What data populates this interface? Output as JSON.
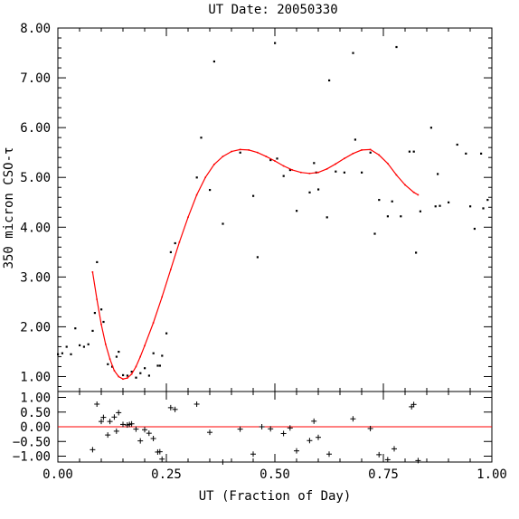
{
  "chart_data": [
    {
      "type": "scatter",
      "title": "UT Date: 20050330",
      "xlabel": "",
      "ylabel": "350 micron CSO-τ",
      "xlim": [
        0.0,
        1.0
      ],
      "ylim": [
        0.7,
        8.0
      ],
      "yticks": [
        1.0,
        2.0,
        3.0,
        4.0,
        5.0,
        6.0,
        7.0,
        8.0
      ],
      "ytick_labels": [
        "1.00",
        "2.00",
        "3.00",
        "4.00",
        "5.00",
        "6.00",
        "7.00",
        "8.00"
      ],
      "grid": false,
      "colors": {
        "points": "#000000",
        "fit": "#ff0000"
      },
      "series": [
        {
          "kind": "points",
          "x": [
            0.0,
            0.01,
            0.02,
            0.03,
            0.04,
            0.05,
            0.06,
            0.07,
            0.08,
            0.085,
            0.09,
            0.1,
            0.105,
            0.115,
            0.125,
            0.135,
            0.14,
            0.15,
            0.16,
            0.17,
            0.18,
            0.19,
            0.2,
            0.21,
            0.22,
            0.23,
            0.235,
            0.24,
            0.25,
            0.26,
            0.27,
            0.32,
            0.33,
            0.35,
            0.36,
            0.38,
            0.42,
            0.45,
            0.46,
            0.49,
            0.5,
            0.505,
            0.52,
            0.535,
            0.55,
            0.58,
            0.59,
            0.595,
            0.6,
            0.62,
            0.625,
            0.64,
            0.66,
            0.68,
            0.685,
            0.7,
            0.72,
            0.73,
            0.74,
            0.76,
            0.77,
            0.78,
            0.79,
            0.81,
            0.82,
            0.825,
            0.835,
            0.86,
            0.87,
            0.875,
            0.88,
            0.9,
            0.92,
            0.94,
            0.95,
            0.96,
            0.975,
            0.98,
            0.99
          ],
          "y": [
            1.45,
            1.47,
            1.6,
            1.45,
            1.97,
            1.63,
            1.6,
            1.65,
            1.92,
            2.28,
            3.3,
            2.35,
            2.1,
            1.25,
            1.2,
            1.4,
            1.5,
            1.03,
            1.02,
            1.1,
            0.98,
            1.07,
            1.17,
            1.02,
            1.47,
            1.22,
            1.22,
            1.42,
            1.87,
            3.5,
            3.68,
            5.0,
            5.8,
            4.75,
            7.33,
            4.07,
            5.5,
            4.63,
            3.4,
            5.35,
            7.7,
            5.38,
            5.03,
            5.15,
            4.33,
            4.7,
            5.29,
            5.1,
            4.76,
            4.2,
            6.95,
            5.12,
            5.1,
            7.5,
            5.76,
            5.1,
            5.5,
            3.87,
            4.55,
            4.22,
            4.52,
            7.62,
            4.22,
            5.52,
            5.52,
            3.49,
            4.32,
            6.0,
            4.42,
            5.07,
            4.43,
            4.5,
            5.66,
            5.48,
            4.42,
            3.97,
            5.48,
            4.38,
            4.55
          ]
        },
        {
          "kind": "fit",
          "x": [
            0.08,
            0.09,
            0.1,
            0.11,
            0.12,
            0.13,
            0.14,
            0.15,
            0.16,
            0.17,
            0.18,
            0.19,
            0.2,
            0.22,
            0.24,
            0.26,
            0.28,
            0.3,
            0.32,
            0.34,
            0.36,
            0.38,
            0.4,
            0.42,
            0.44,
            0.46,
            0.48,
            0.5,
            0.52,
            0.54,
            0.56,
            0.58,
            0.6,
            0.62,
            0.64,
            0.66,
            0.68,
            0.7,
            0.72,
            0.74,
            0.76,
            0.78,
            0.8,
            0.82,
            0.83
          ],
          "y": [
            3.1,
            2.55,
            2.05,
            1.65,
            1.35,
            1.12,
            1.0,
            0.95,
            0.97,
            1.05,
            1.2,
            1.4,
            1.62,
            2.08,
            2.6,
            3.15,
            3.7,
            4.2,
            4.65,
            5.0,
            5.26,
            5.42,
            5.52,
            5.56,
            5.55,
            5.5,
            5.42,
            5.33,
            5.23,
            5.15,
            5.1,
            5.08,
            5.1,
            5.17,
            5.27,
            5.38,
            5.48,
            5.55,
            5.56,
            5.45,
            5.28,
            5.05,
            4.85,
            4.7,
            4.65
          ]
        }
      ]
    },
    {
      "type": "scatter",
      "title": "",
      "xlabel": "UT (Fraction of Day)",
      "ylabel": "",
      "xlim": [
        0.0,
        1.0
      ],
      "ylim": [
        -1.2,
        1.2
      ],
      "xticks": [
        0.0,
        0.25,
        0.5,
        0.75,
        1.0
      ],
      "xtick_labels": [
        "0.00",
        "0.25",
        "0.50",
        "0.75",
        "1.00"
      ],
      "yticks": [
        1.0,
        0.5,
        0.0,
        -0.5,
        -1.0
      ],
      "ytick_labels": [
        "1.00",
        "0.50",
        "0.00",
        "−0.50",
        "−1.00"
      ],
      "grid": false,
      "colors": {
        "points": "#000000",
        "zero_line": "#ff0000"
      },
      "series": [
        {
          "kind": "residuals",
          "x": [
            0.08,
            0.09,
            0.1,
            0.105,
            0.115,
            0.12,
            0.13,
            0.135,
            0.14,
            0.15,
            0.16,
            0.165,
            0.17,
            0.18,
            0.19,
            0.2,
            0.21,
            0.22,
            0.23,
            0.235,
            0.24,
            0.26,
            0.27,
            0.32,
            0.35,
            0.38,
            0.42,
            0.45,
            0.47,
            0.49,
            0.52,
            0.535,
            0.55,
            0.58,
            0.59,
            0.6,
            0.625,
            0.68,
            0.72,
            0.74,
            0.76,
            0.775,
            0.815,
            0.82,
            0.83
          ],
          "y": [
            -0.78,
            0.77,
            0.18,
            0.32,
            -0.28,
            0.18,
            0.33,
            -0.15,
            0.48,
            0.08,
            0.06,
            0.08,
            0.1,
            -0.08,
            -0.48,
            -0.1,
            -0.22,
            -0.4,
            -0.86,
            -0.85,
            -1.1,
            0.65,
            0.59,
            0.77,
            -0.19,
            -1.2,
            -0.08,
            -0.93,
            0.0,
            -0.07,
            -0.23,
            -0.04,
            -0.82,
            -0.47,
            0.19,
            -0.36,
            -0.93,
            0.27,
            -0.06,
            -0.95,
            -1.12,
            -0.75,
            0.68,
            0.76,
            -1.15
          ]
        },
        {
          "kind": "zero-line",
          "x": [
            0.0,
            1.0
          ],
          "y": [
            0.0,
            0.0
          ]
        }
      ]
    }
  ]
}
